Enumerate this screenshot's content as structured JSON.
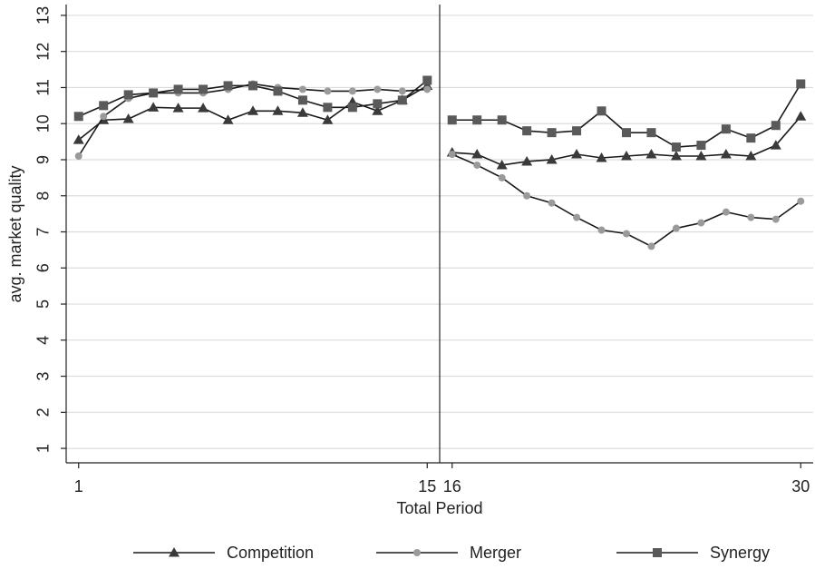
{
  "chart_data": {
    "type": "line",
    "xlabel": "Total Period",
    "ylabel": "avg. market quality",
    "x": [
      1,
      2,
      3,
      4,
      5,
      6,
      7,
      8,
      9,
      10,
      11,
      12,
      13,
      14,
      15,
      16,
      17,
      18,
      19,
      20,
      21,
      22,
      23,
      24,
      25,
      26,
      27,
      28,
      29,
      30
    ],
    "series": [
      {
        "name": "Competition",
        "color": "#3a3a3a",
        "marker": "triangle",
        "values": [
          9.55,
          10.1,
          10.13,
          10.45,
          10.43,
          10.43,
          10.1,
          10.35,
          10.35,
          10.3,
          10.1,
          10.6,
          10.35,
          10.65,
          11.05,
          9.2,
          9.15,
          8.85,
          8.95,
          9.0,
          9.15,
          9.05,
          9.1,
          9.15,
          9.1,
          9.1,
          9.15,
          9.1,
          9.4,
          10.2
        ]
      },
      {
        "name": "Merger",
        "color": "#9a9a9a",
        "marker": "circle",
        "values": [
          9.1,
          10.2,
          10.7,
          10.85,
          10.85,
          10.85,
          10.95,
          11.1,
          11.0,
          10.95,
          10.9,
          10.9,
          10.95,
          10.9,
          10.95,
          9.15,
          8.85,
          8.5,
          8.0,
          7.8,
          7.4,
          7.05,
          6.95,
          6.6,
          7.1,
          7.25,
          7.55,
          7.4,
          7.35,
          7.85
        ]
      },
      {
        "name": "Synergy",
        "color": "#5a5a5a",
        "marker": "square",
        "values": [
          10.2,
          10.5,
          10.8,
          10.85,
          10.95,
          10.95,
          11.05,
          11.05,
          10.9,
          10.65,
          10.45,
          10.45,
          10.55,
          10.65,
          11.2,
          10.1,
          10.1,
          10.1,
          9.8,
          9.75,
          9.8,
          10.35,
          9.75,
          9.75,
          9.35,
          9.4,
          9.85,
          9.6,
          9.95,
          11.1
        ]
      }
    ],
    "line_color": "#1a1a1a",
    "vline": 15.5,
    "xlim": [
      0.5,
      30.5
    ],
    "xticks": [
      1,
      15,
      16,
      30
    ],
    "ylim": [
      0.6,
      13.3
    ],
    "yticks": [
      1,
      2,
      3,
      4,
      5,
      6,
      7,
      8,
      9,
      10,
      11,
      12,
      13
    ],
    "grid": true,
    "legend": "bottom"
  }
}
